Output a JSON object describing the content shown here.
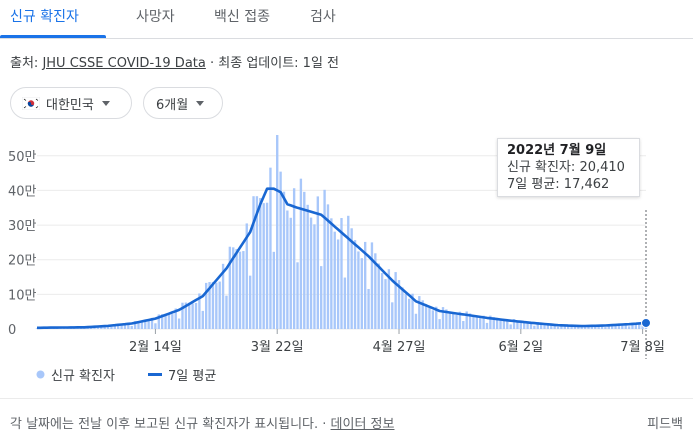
{
  "tabs": [
    "신규 확진자",
    "사망자",
    "백신 접종",
    "검사"
  ],
  "source": {
    "prefix": "출처: ",
    "link": "JHU CSSE COVID-19 Data",
    "separator": " · ",
    "updated": "최종 업데이트: 1일 전"
  },
  "filters": {
    "region": "대한민국",
    "period": "6개월"
  },
  "tooltip": {
    "date": "2022년 7월 9일",
    "cases": "신규 확진자: 20,410",
    "avg": "7일 평균: 17,462"
  },
  "legend": {
    "bars": "신규 확진자",
    "line": "7일 평균"
  },
  "footer": {
    "note": "각 날짜에는 전날 이후 보고된 신규 확진자가 표시됩니다.",
    "separator": " · ",
    "link": "데이터 정보",
    "feedback": "피드백"
  },
  "colors": {
    "bars": "#a8c7fa",
    "line": "#1967d2",
    "accent": "#1a73e8"
  },
  "chart_data": {
    "type": "bar",
    "x_ticks": [
      "2월 14일",
      "3월 22일",
      "4월 27일",
      "6월 2일",
      "7월 8일"
    ],
    "y_ticks": [
      "0",
      "10만",
      "20만",
      "30만",
      "40만",
      "50만"
    ],
    "ylim": [
      0,
      560000
    ],
    "start_date": "2022-01-10",
    "days": 181,
    "tick_day_index": [
      35,
      71,
      107,
      143,
      179
    ],
    "weekly_avg_key": [
      [
        0,
        3500
      ],
      [
        14,
        5000
      ],
      [
        21,
        9000
      ],
      [
        28,
        16000
      ],
      [
        35,
        30000
      ],
      [
        42,
        55000
      ],
      [
        49,
        95000
      ],
      [
        56,
        175000
      ],
      [
        63,
        280000
      ],
      [
        66,
        360000
      ],
      [
        68,
        405000
      ],
      [
        70,
        405000
      ],
      [
        72,
        395000
      ],
      [
        74,
        360000
      ],
      [
        77,
        350000
      ],
      [
        84,
        330000
      ],
      [
        91,
        270000
      ],
      [
        98,
        210000
      ],
      [
        105,
        140000
      ],
      [
        112,
        80000
      ],
      [
        119,
        52000
      ],
      [
        126,
        42000
      ],
      [
        133,
        32000
      ],
      [
        140,
        24000
      ],
      [
        147,
        17000
      ],
      [
        154,
        11000
      ],
      [
        161,
        8500
      ],
      [
        168,
        10000
      ],
      [
        175,
        14000
      ],
      [
        180,
        17462
      ]
    ],
    "daily_peak_value": 560000,
    "last_point": {
      "cases": 20410,
      "avg": 17462
    }
  }
}
